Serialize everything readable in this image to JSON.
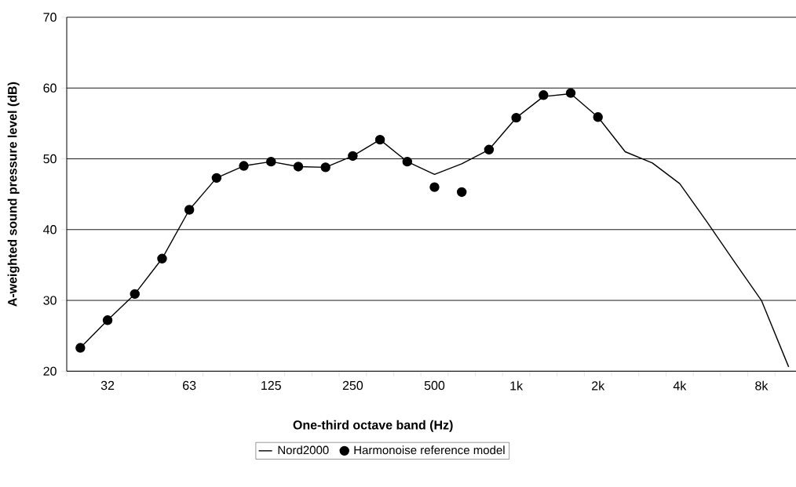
{
  "chart_data": {
    "type": "line",
    "xlabel": "One-third octave band (Hz)",
    "ylabel": "A-weighted sound pressure level (dB)",
    "categories": [
      null,
      "32",
      null,
      null,
      "63",
      null,
      null,
      "125",
      null,
      null,
      "250",
      null,
      null,
      "500",
      null,
      null,
      "1k",
      null,
      null,
      "2k",
      null,
      null,
      "4k",
      null,
      null,
      "8k",
      null
    ],
    "series": [
      {
        "name": "Nord2000",
        "color": "#000000",
        "marker": "none",
        "values": [
          23.3,
          27.2,
          30.9,
          35.9,
          42.8,
          47.3,
          49.0,
          49.6,
          48.9,
          48.8,
          50.4,
          52.7,
          49.6,
          47.8,
          49.3,
          51.3,
          55.8,
          58.8,
          59.2,
          55.9,
          51.0,
          49.4,
          46.5,
          41.1,
          35.5,
          30.0,
          20.6
        ]
      },
      {
        "name": "Harmonoise reference model",
        "type": "scatter",
        "color": "#000000",
        "marker": "circle",
        "values": [
          23.3,
          27.2,
          30.9,
          35.9,
          42.8,
          47.3,
          49.0,
          49.6,
          48.9,
          48.8,
          50.4,
          52.7,
          49.6,
          46.0,
          45.3,
          51.3,
          55.8,
          59.0,
          59.3,
          55.9,
          null,
          null,
          null,
          null,
          null,
          null,
          null
        ]
      }
    ],
    "ylim": [
      20,
      70
    ],
    "yticks": [
      20,
      30,
      40,
      50,
      60,
      70
    ],
    "grid": "y",
    "legend": "bottom"
  }
}
